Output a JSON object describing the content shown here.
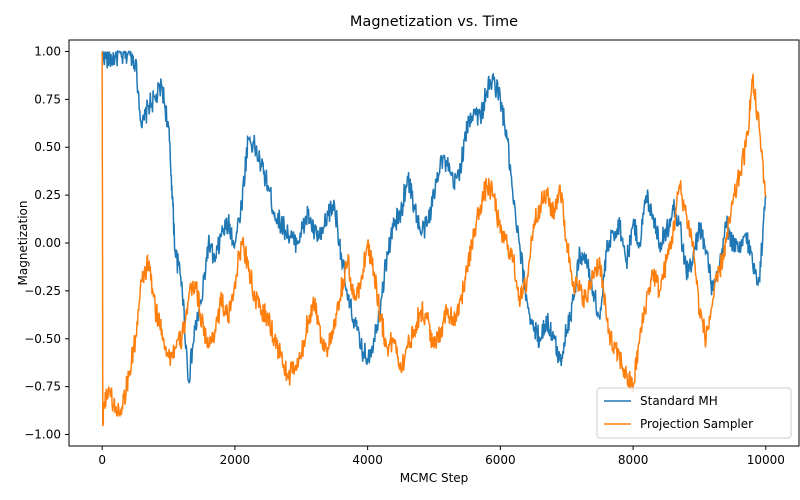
{
  "chart_data": {
    "type": "line",
    "title": "Magnetization vs. Time",
    "xlabel": "MCMC Step",
    "ylabel": "Magnetization",
    "xlim": [
      -500,
      10500
    ],
    "ylim": [
      -1.06,
      1.06
    ],
    "x_ticks": [
      0,
      2000,
      4000,
      6000,
      8000,
      10000
    ],
    "y_ticks": [
      -1.0,
      -0.75,
      -0.5,
      -0.25,
      0.0,
      0.25,
      0.5,
      0.75,
      1.0
    ],
    "x_tick_labels": [
      "0",
      "2000",
      "4000",
      "6000",
      "8000",
      "10000"
    ],
    "y_tick_labels": [
      "−1.00",
      "−0.75",
      "−0.50",
      "−0.25",
      "0.00",
      "0.25",
      "0.50",
      "0.75",
      "1.00"
    ],
    "grid": false,
    "legend_position": "bottom-right",
    "series": [
      {
        "name": "Standard MH",
        "color": "#1f77b4",
        "x": [
          0,
          100,
          200,
          300,
          400,
          500,
          600,
          700,
          800,
          900,
          1000,
          1050,
          1100,
          1200,
          1300,
          1400,
          1500,
          1600,
          1700,
          1800,
          1900,
          2000,
          2100,
          2200,
          2300,
          2400,
          2500,
          2600,
          2700,
          2800,
          2900,
          3000,
          3100,
          3200,
          3300,
          3400,
          3500,
          3600,
          3700,
          3800,
          3900,
          4000,
          4100,
          4200,
          4300,
          4400,
          4500,
          4600,
          4700,
          4800,
          4900,
          5000,
          5100,
          5200,
          5300,
          5400,
          5500,
          5600,
          5700,
          5800,
          5900,
          6000,
          6100,
          6200,
          6300,
          6400,
          6500,
          6600,
          6700,
          6800,
          6900,
          7000,
          7100,
          7200,
          7300,
          7400,
          7500,
          7600,
          7700,
          7800,
          7900,
          8000,
          8100,
          8200,
          8300,
          8400,
          8500,
          8600,
          8700,
          8800,
          8900,
          9000,
          9100,
          9200,
          9300,
          9400,
          9500,
          9600,
          9700,
          9800,
          9900,
          10000
        ],
        "y": [
          1.0,
          0.95,
          0.98,
          0.97,
          1.0,
          0.95,
          0.6,
          0.72,
          0.75,
          0.82,
          0.6,
          0.3,
          -0.05,
          -0.2,
          -0.72,
          -0.45,
          -0.3,
          0.0,
          -0.1,
          0.05,
          0.1,
          0.0,
          0.2,
          0.55,
          0.5,
          0.4,
          0.3,
          0.15,
          0.1,
          0.05,
          0.0,
          0.05,
          0.15,
          0.05,
          0.02,
          0.15,
          0.2,
          -0.05,
          -0.3,
          -0.4,
          -0.55,
          -0.6,
          -0.5,
          -0.3,
          -0.05,
          0.1,
          0.15,
          0.35,
          0.2,
          0.05,
          0.1,
          0.25,
          0.45,
          0.4,
          0.3,
          0.4,
          0.6,
          0.7,
          0.65,
          0.8,
          0.85,
          0.75,
          0.55,
          0.2,
          -0.05,
          -0.3,
          -0.45,
          -0.5,
          -0.4,
          -0.5,
          -0.62,
          -0.45,
          -0.3,
          -0.05,
          -0.1,
          -0.25,
          -0.4,
          -0.05,
          0.05,
          0.1,
          -0.1,
          0.1,
          0.0,
          0.25,
          0.15,
          0.0,
          0.05,
          0.2,
          0.1,
          -0.15,
          -0.1,
          0.1,
          -0.05,
          -0.25,
          -0.15,
          0.1,
          0.0,
          -0.05,
          0.05,
          -0.1,
          -0.2,
          0.25
        ]
      },
      {
        "name": "Projection Sampler",
        "color": "#ff7f0e",
        "x": [
          0,
          10,
          20,
          100,
          200,
          300,
          400,
          500,
          600,
          700,
          800,
          900,
          1000,
          1100,
          1200,
          1300,
          1400,
          1500,
          1600,
          1700,
          1800,
          1900,
          2000,
          2100,
          2200,
          2300,
          2400,
          2500,
          2600,
          2700,
          2800,
          2900,
          3000,
          3100,
          3200,
          3300,
          3400,
          3500,
          3600,
          3700,
          3800,
          3900,
          4000,
          4100,
          4200,
          4300,
          4400,
          4500,
          4600,
          4700,
          4800,
          4900,
          5000,
          5100,
          5200,
          5300,
          5400,
          5500,
          5600,
          5700,
          5800,
          5900,
          6000,
          6100,
          6200,
          6300,
          6400,
          6500,
          6600,
          6700,
          6800,
          6900,
          7000,
          7100,
          7200,
          7300,
          7400,
          7500,
          7600,
          7700,
          7800,
          7900,
          8000,
          8100,
          8200,
          8300,
          8400,
          8500,
          8600,
          8700,
          8800,
          8900,
          9000,
          9100,
          9200,
          9300,
          9400,
          9500,
          9600,
          9700,
          9800,
          9900,
          10000
        ],
        "y": [
          1.0,
          -0.95,
          -0.85,
          -0.75,
          -0.88,
          -0.85,
          -0.7,
          -0.5,
          -0.2,
          -0.1,
          -0.35,
          -0.45,
          -0.6,
          -0.55,
          -0.5,
          -0.3,
          -0.2,
          -0.4,
          -0.55,
          -0.45,
          -0.3,
          -0.4,
          -0.2,
          0.0,
          -0.1,
          -0.3,
          -0.35,
          -0.4,
          -0.5,
          -0.6,
          -0.7,
          -0.65,
          -0.6,
          -0.4,
          -0.3,
          -0.5,
          -0.55,
          -0.45,
          -0.25,
          -0.1,
          -0.3,
          -0.2,
          0.0,
          -0.15,
          -0.4,
          -0.55,
          -0.5,
          -0.65,
          -0.55,
          -0.45,
          -0.35,
          -0.4,
          -0.55,
          -0.45,
          -0.35,
          -0.4,
          -0.3,
          -0.15,
          0.05,
          0.2,
          0.3,
          0.25,
          0.05,
          0.0,
          -0.1,
          -0.3,
          -0.2,
          0.1,
          0.2,
          0.25,
          0.15,
          0.3,
          0.0,
          -0.2,
          -0.25,
          -0.3,
          -0.15,
          -0.1,
          -0.4,
          -0.55,
          -0.6,
          -0.7,
          -0.75,
          -0.5,
          -0.3,
          -0.15,
          -0.25,
          -0.1,
          0.05,
          0.3,
          0.15,
          0.0,
          -0.35,
          -0.5,
          -0.3,
          -0.15,
          0.0,
          0.2,
          0.35,
          0.5,
          0.85,
          0.6,
          0.25
        ]
      }
    ]
  }
}
